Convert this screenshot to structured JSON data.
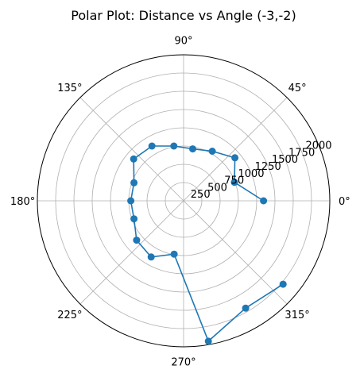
{
  "chart_data": {
    "type": "line",
    "projection": "polar",
    "title": "Polar Plot: Distance vs Angle (-3,-2)",
    "theta_tick_labels": [
      "0°",
      "45°",
      "90°",
      "135°",
      "180°",
      "225°",
      "270°",
      "315°"
    ],
    "theta_ticks_deg": [
      0,
      45,
      90,
      135,
      180,
      225,
      270,
      315
    ],
    "r_ticks": [
      250,
      500,
      750,
      1000,
      1250,
      1500,
      1750,
      2000
    ],
    "r_tick_labels": [
      "250",
      "500",
      "750",
      "1000",
      "1250",
      "1500",
      "1750",
      "2000"
    ],
    "rlim": [
      0,
      2000
    ],
    "grid": true,
    "marker": "circle",
    "color": "#1f77b4",
    "series": [
      {
        "theta_deg": [
          0,
          20,
          40,
          60,
          80,
          100,
          120,
          140,
          160,
          180,
          200,
          220,
          240,
          260,
          280,
          300,
          320
        ],
        "r": [
          1093,
          740,
          917,
          784,
          722,
          762,
          866,
          891,
          722,
          722,
          722,
          839,
          888,
          742,
          1953,
          1697,
          1777
        ]
      }
    ]
  }
}
